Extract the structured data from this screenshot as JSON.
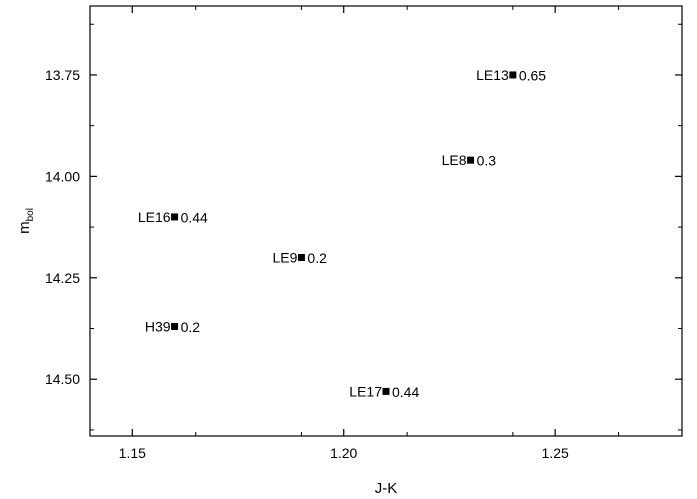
{
  "chart_data": {
    "type": "scatter",
    "xlabel": "J-K",
    "ylabel": {
      "main": "m",
      "sub": "bol"
    },
    "xlim": [
      1.14,
      1.28
    ],
    "ylim": [
      13.58,
      14.64
    ],
    "y_inverted": true,
    "grid": false,
    "x_ticks": [
      "1.15",
      "1.20",
      "1.25"
    ],
    "x_tick_values": [
      1.15,
      1.2,
      1.25
    ],
    "y_ticks": [
      "13.75",
      "14.00",
      "14.25",
      "14.50"
    ],
    "y_tick_values": [
      13.75,
      14.0,
      14.25,
      14.5
    ],
    "points": [
      {
        "name": "LE13",
        "x": 1.24,
        "y": 13.75,
        "value": "0.65"
      },
      {
        "name": "LE8",
        "x": 1.23,
        "y": 13.96,
        "value": "0.3"
      },
      {
        "name": "LE16",
        "x": 1.16,
        "y": 14.1,
        "value": "0.44"
      },
      {
        "name": "LE9",
        "x": 1.19,
        "y": 14.2,
        "value": "0.2"
      },
      {
        "name": "H39",
        "x": 1.16,
        "y": 14.37,
        "value": "0.2"
      },
      {
        "name": "LE17",
        "x": 1.21,
        "y": 14.53,
        "value": "0.44"
      }
    ],
    "marker_color": "#000000"
  }
}
